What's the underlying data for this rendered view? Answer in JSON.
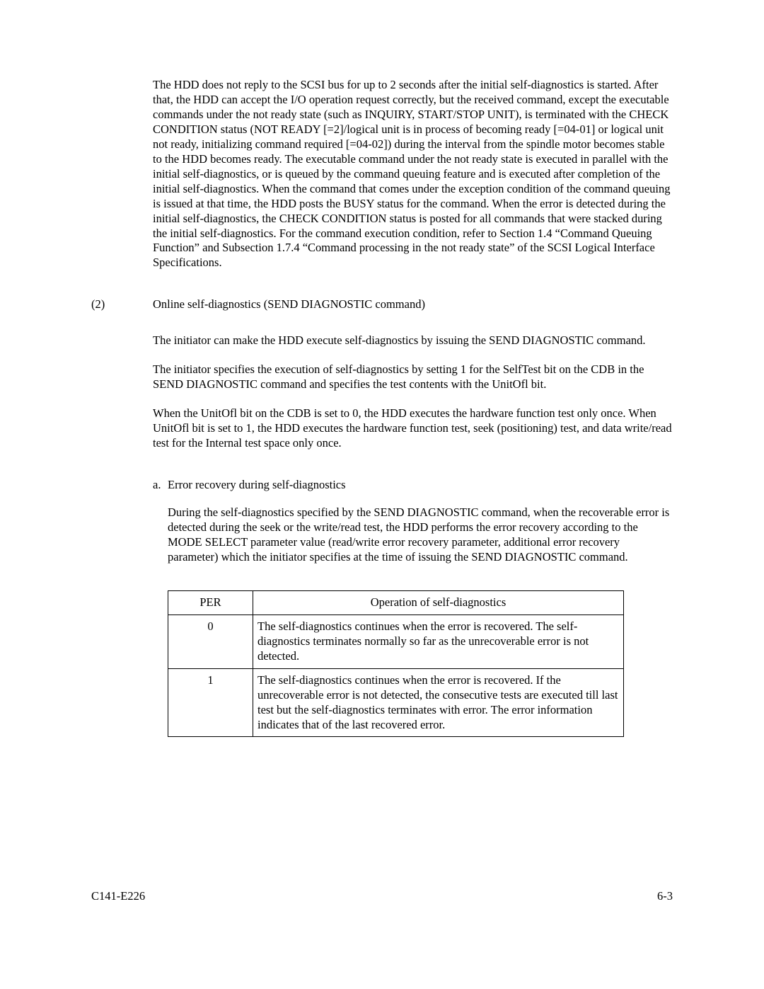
{
  "para1": "The HDD does not reply to the SCSI bus for up to 2 seconds after the initial self-diagnostics is started.  After that, the HDD can accept the I/O operation request correctly, but the received command, except the executable commands under the not ready state (such as INQUIRY, START/STOP UNIT), is terminated with the CHECK CONDITION status (NOT READY [=2]/logical unit is in process of becoming ready [=04-01] or logical unit not ready, initializing command required [=04-02]) during the interval from the spindle motor becomes stable to the HDD becomes ready.  The executable command under the not ready state is executed in parallel with the initial self-diagnostics, or is queued by the command queuing feature and is executed after completion of the initial self-diagnostics.  When the command that comes under the exception condition of the command queuing is issued at that time, the HDD posts the BUSY status for the command.  When the error is detected during the initial self-diagnostics, the CHECK CONDITION status is posted for all commands that were stacked during the initial self-diagnostics.  For the command execution condition, refer to Section 1.4 “Command Queuing Function” and Subsection 1.7.4 “Command processing in the not ready state” of the SCSI Logical Interface Specifications.",
  "heading2_num": "(2)",
  "heading2_text": "Online self-diagnostics (SEND DIAGNOSTIC command)",
  "para2": "The initiator can make the HDD execute self-diagnostics by issuing the SEND DIAGNOSTIC command.",
  "para3": "The initiator specifies the execution of self-diagnostics by setting 1 for the SelfTest bit on the CDB in the SEND DIAGNOSTIC command and specifies the test contents with the UnitOfl bit.",
  "para4": "When the UnitOfl bit on the CDB is set to 0, the HDD executes the hardware function test only once.  When UnitOfl bit is set to 1, the HDD executes the hardware function test, seek (positioning) test, and data write/read test for the Internal test space only once.",
  "sub_a_letter": "a.",
  "sub_a_text": "Error recovery during self-diagnostics",
  "para5": "During the self-diagnostics specified by the SEND DIAGNOSTIC command, when the recoverable error is detected during the seek or the write/read test, the HDD performs the error recovery according to the MODE SELECT parameter value (read/write error recovery parameter, additional error recovery parameter) which the initiator specifies at the time of issuing the SEND DIAGNOSTIC command.",
  "table": {
    "col1_header": "PER",
    "col2_header": "Operation of self-diagnostics",
    "rows": [
      {
        "per": "0",
        "op": "The self-diagnostics continues when the error is recovered.  The self-diagnostics terminates normally so far as the unrecoverable error is not detected."
      },
      {
        "per": "1",
        "op": "The self-diagnostics continues when the error is recovered.  If the unrecoverable error is not detected, the consecutive tests are executed till last test but the self-diagnostics terminates with error.  The error information indicates that of the last recovered error."
      }
    ]
  },
  "footer_left": "C141-E226",
  "footer_right": "6-3"
}
